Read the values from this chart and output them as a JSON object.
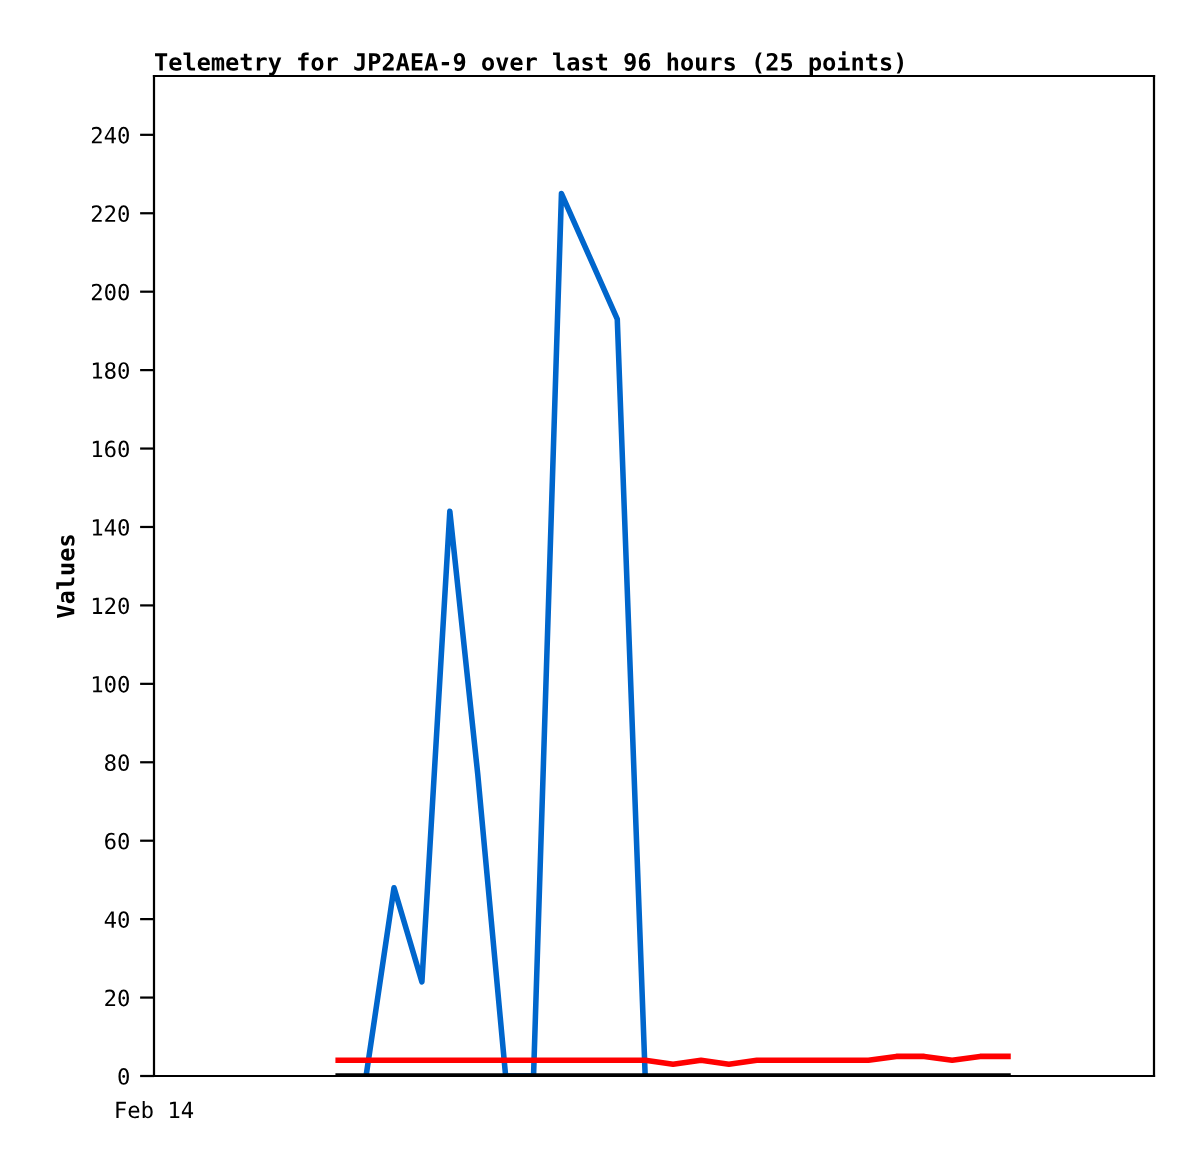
{
  "chart_data": {
    "type": "line",
    "title": "Telemetry for JP2AEA-9 over last 96 hours (25 points)",
    "ylabel": "Values",
    "categories": [
      null,
      null,
      null,
      null,
      null,
      null,
      null,
      null,
      null,
      null,
      null,
      null,
      null,
      null,
      null,
      null,
      null,
      null,
      null,
      null,
      null,
      null,
      null,
      null,
      null
    ],
    "tick_labels": "y",
    "annotations": [
      "Feb 14"
    ],
    "ylim": [
      0,
      255
    ],
    "yticks": [
      0,
      20,
      40,
      60,
      80,
      100,
      120,
      140,
      160,
      180,
      200,
      220,
      240
    ],
    "grid": false,
    "marker": "none",
    "line_style": "solid",
    "series": [
      {
        "color": "#0066cc",
        "values": [
          null,
          0,
          48,
          24,
          144,
          77,
          0,
          0,
          225,
          209,
          193,
          0,
          null,
          null,
          null,
          null,
          null,
          null,
          null,
          null,
          null,
          null,
          null,
          null,
          null
        ]
      },
      {
        "color": "#ff0000",
        "values": [
          4,
          4,
          4,
          4,
          4,
          4,
          4,
          4,
          4,
          4,
          4,
          4,
          3,
          4,
          3,
          4,
          4,
          4,
          4,
          4,
          5,
          5,
          4,
          5,
          5
        ]
      },
      {
        "color": "#000000",
        "values": [
          0,
          0,
          0,
          0,
          0,
          0,
          0,
          0,
          0,
          0,
          0,
          0,
          0,
          0,
          0,
          0,
          0,
          0,
          0,
          0,
          0,
          0,
          0,
          0,
          0
        ]
      }
    ]
  }
}
